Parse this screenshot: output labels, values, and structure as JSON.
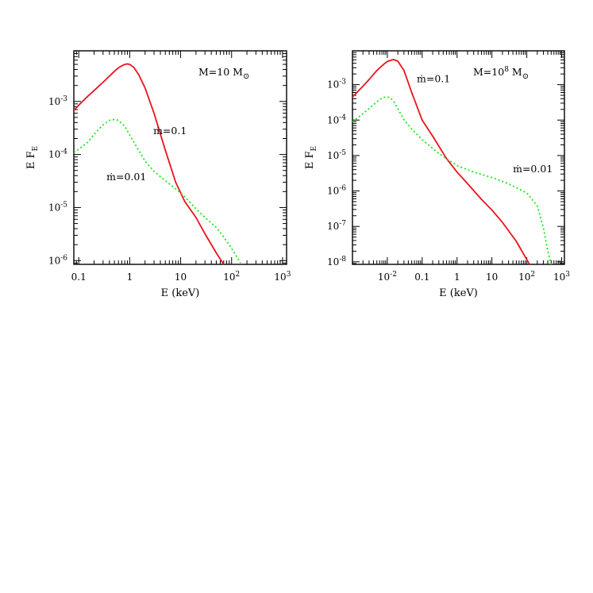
{
  "chart_data": [
    {
      "type": "line",
      "title": "",
      "xlabel": "E (keV)",
      "ylabel_main": "E F",
      "ylabel_sub": "E",
      "x_scale": "log",
      "y_scale": "log",
      "xlim": [
        0.08,
        1200
      ],
      "ylim": [
        8.5e-07,
        0.009
      ],
      "x_ticks": [
        {
          "value": 0.1,
          "base": "0.1",
          "exp": ""
        },
        {
          "value": 1,
          "base": "1",
          "exp": ""
        },
        {
          "value": 10,
          "base": "10",
          "exp": ""
        },
        {
          "value": 100,
          "base": "10",
          "exp": "2"
        },
        {
          "value": 1000,
          "base": "10",
          "exp": "3"
        }
      ],
      "y_ticks": [
        {
          "value": 0.001,
          "base": "10",
          "exp": "-3"
        },
        {
          "value": 0.0001,
          "base": "10",
          "exp": "-4"
        },
        {
          "value": 1e-05,
          "base": "10",
          "exp": "-5"
        },
        {
          "value": 1e-06,
          "base": "10",
          "exp": "-6"
        }
      ],
      "mass_label": {
        "prefix": "M=10 M",
        "exp": "",
        "symbol": "⊙"
      },
      "series": [
        {
          "name": "ṁ=0.1",
          "style": "solid",
          "color": "#e8141c",
          "x": [
            0.08,
            0.1,
            0.15,
            0.2,
            0.3,
            0.4,
            0.5,
            0.6,
            0.7,
            0.8,
            0.9,
            1.0,
            1.2,
            1.5,
            2,
            3,
            5,
            8,
            12,
            20,
            30,
            50,
            70
          ],
          "y": [
            0.00068,
            0.00085,
            0.00125,
            0.0016,
            0.0023,
            0.003,
            0.0037,
            0.0043,
            0.0047,
            0.005,
            0.0051,
            0.005,
            0.0044,
            0.0032,
            0.0018,
            0.0006,
            0.00012,
            3e-05,
            1.3e-05,
            6.5e-06,
            3.2e-06,
            1.4e-06,
            8.5e-07
          ]
        },
        {
          "name": "ṁ=0.01",
          "style": "dotted",
          "color": "#19e619",
          "x": [
            0.08,
            0.1,
            0.15,
            0.2,
            0.3,
            0.4,
            0.5,
            0.6,
            0.8,
            1.0,
            1.5,
            2,
            3,
            5,
            10,
            20,
            30,
            50,
            70,
            100,
            150
          ],
          "y": [
            0.00011,
            0.000125,
            0.00017,
            0.00024,
            0.00036,
            0.00044,
            0.00046,
            0.00044,
            0.00034,
            0.00023,
            0.00012,
            7.5e-05,
            4.8e-05,
            3.2e-05,
            1.9e-05,
            9.5e-06,
            6.5e-06,
            4.2e-06,
            2.8e-06,
            1.7e-06,
            9e-07
          ]
        }
      ],
      "annotations": [
        {
          "series": "ṁ=0.1",
          "text": "ṁ=0.1",
          "x": 2.9,
          "y": 0.00024
        },
        {
          "series": "ṁ=0.01",
          "text": "ṁ=0.01",
          "x": 0.35,
          "y": 3.3e-05
        }
      ]
    },
    {
      "type": "line",
      "title": "",
      "xlabel": "E (keV)",
      "ylabel_main": "E F",
      "ylabel_sub": "E",
      "x_scale": "log",
      "y_scale": "log",
      "xlim": [
        0.001,
        1200
      ],
      "ylim": [
        8.5e-09,
        0.009
      ],
      "x_ticks": [
        {
          "value": 0.01,
          "base": "10",
          "exp": "-2"
        },
        {
          "value": 0.1,
          "base": "0.1",
          "exp": ""
        },
        {
          "value": 1,
          "base": "1",
          "exp": ""
        },
        {
          "value": 10,
          "base": "10",
          "exp": ""
        },
        {
          "value": 100,
          "base": "10",
          "exp": "2"
        },
        {
          "value": 1000,
          "base": "10",
          "exp": "3"
        }
      ],
      "y_ticks": [
        {
          "value": 0.001,
          "base": "10",
          "exp": "-3"
        },
        {
          "value": 0.0001,
          "base": "10",
          "exp": "-4"
        },
        {
          "value": 1e-05,
          "base": "10",
          "exp": "-5"
        },
        {
          "value": 1e-06,
          "base": "10",
          "exp": "-6"
        },
        {
          "value": 1e-07,
          "base": "10",
          "exp": "-7"
        },
        {
          "value": 1e-08,
          "base": "10",
          "exp": "-8"
        }
      ],
      "mass_label": {
        "prefix": "M=10",
        "exp": "8",
        "suffix": " M",
        "symbol": "⊙"
      },
      "series": [
        {
          "name": "ṁ=0.1",
          "style": "solid",
          "color": "#e8141c",
          "x": [
            0.001,
            0.002,
            0.003,
            0.005,
            0.008,
            0.01,
            0.015,
            0.02,
            0.03,
            0.05,
            0.1,
            0.2,
            0.5,
            1,
            2,
            5,
            10,
            20,
            50,
            100,
            120
          ],
          "y": [
            0.00045,
            0.0009,
            0.0014,
            0.0025,
            0.0038,
            0.0045,
            0.0051,
            0.0046,
            0.0025,
            0.0006,
            0.0001,
            3.5e-05,
            8.2e-06,
            3.4e-06,
            1.6e-06,
            5.8e-07,
            2.9e-07,
            1.3e-07,
            3.8e-08,
            1.15e-08,
            8.5e-09
          ]
        },
        {
          "name": "ṁ=0.01",
          "style": "dotted",
          "color": "#19e619",
          "x": [
            0.001,
            0.002,
            0.004,
            0.006,
            0.008,
            0.01,
            0.012,
            0.015,
            0.02,
            0.03,
            0.05,
            0.1,
            0.3,
            1,
            3,
            10,
            30,
            100,
            200,
            300,
            400,
            500
          ],
          "y": [
            9e-05,
            0.00015,
            0.00027,
            0.00038,
            0.00044,
            0.00045,
            0.00043,
            0.00034,
            0.00021,
            0.000102,
            5.6e-05,
            2.8e-05,
            1.14e-05,
            5.2e-06,
            3.4e-06,
            2.4e-06,
            1.6e-06,
            8.8e-07,
            3.8e-07,
            9e-08,
            2e-08,
            8.5e-09
          ]
        }
      ],
      "annotations": [
        {
          "series": "ṁ=0.1",
          "text": "ṁ=0.1",
          "x": 0.07,
          "y": 0.00118
        },
        {
          "series": "ṁ=0.01",
          "text": "ṁ=0.01",
          "x": 40,
          "y": 3.4e-06
        }
      ]
    }
  ]
}
